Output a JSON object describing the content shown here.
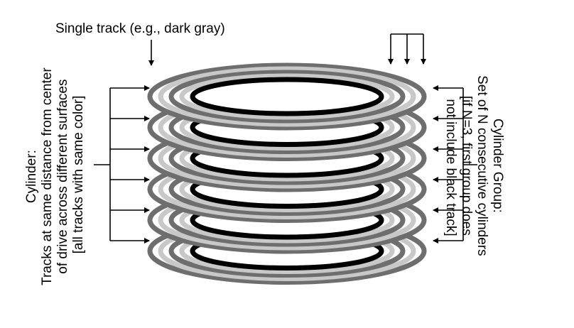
{
  "labels": {
    "single_track": "Single track (e.g., dark gray)",
    "cylinder": {
      "line1": "Cylinder:",
      "line2": "Tracks at same distance from center",
      "line3": "of drive across different surfaces",
      "line4": "[all tracks with same color]"
    },
    "cylinder_group": {
      "line1": "Cylinder Group:",
      "line2": "Set of N consecutive cylinders",
      "line3": "[if N=3, first group does",
      "line4": "not include black track]"
    }
  },
  "platters": {
    "count": 6,
    "track_colors": [
      "#6e6e6e",
      "#c8c8c8",
      "#6e6e6e",
      "#c8c8c8",
      "#000000"
    ]
  },
  "colors": {
    "dark_gray": "#6e6e6e",
    "light_gray": "#c8c8c8",
    "black": "#000000",
    "arrow": "#000000"
  }
}
